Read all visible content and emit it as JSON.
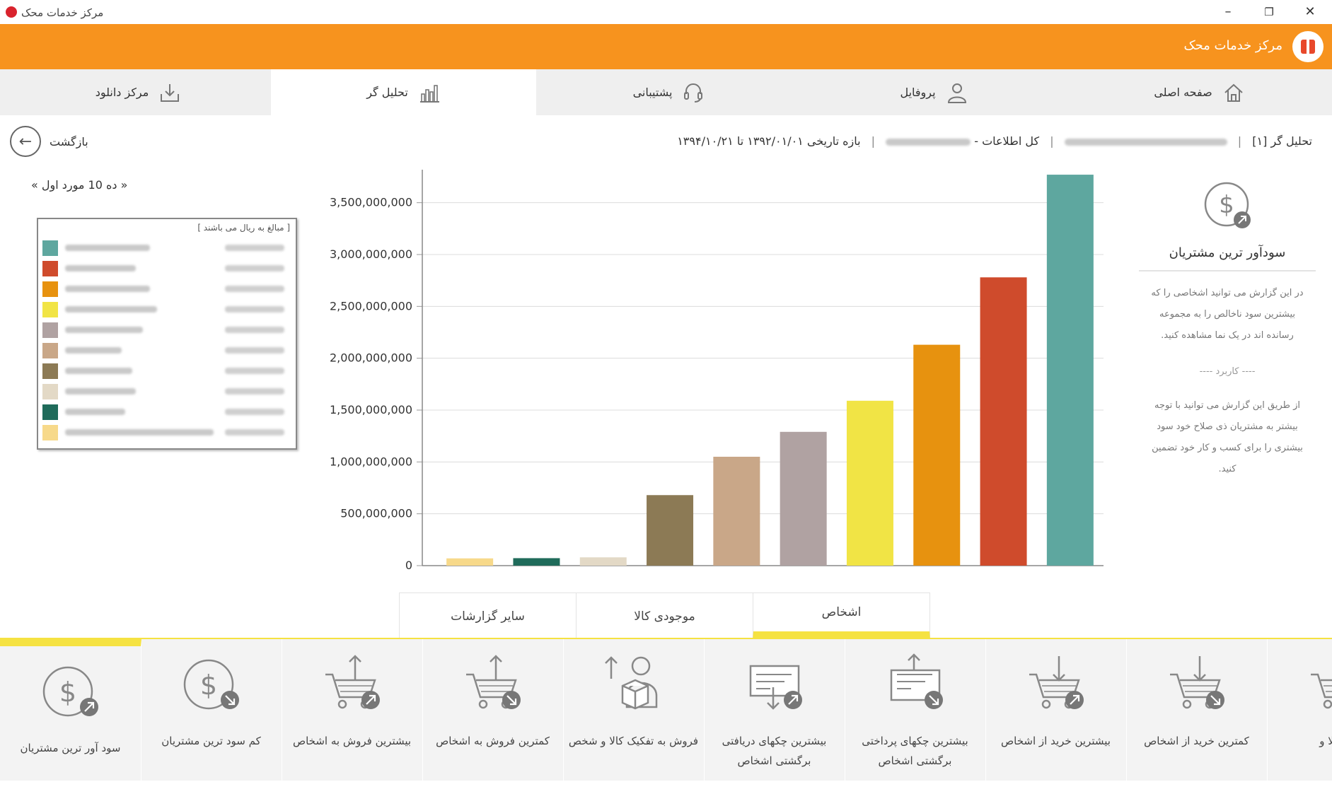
{
  "window": {
    "title": "مرکز خدمات محک",
    "minimize": "–",
    "restore": "❐",
    "close": "✕"
  },
  "header": {
    "brand": "مرکز خدمات محک"
  },
  "nav": {
    "items": [
      {
        "label": "صفحه اصلی",
        "icon": "home-icon"
      },
      {
        "label": "پروفایل",
        "icon": "user-icon"
      },
      {
        "label": "پشتیبانی",
        "icon": "headset-icon"
      },
      {
        "label": "تحلیل گر",
        "icon": "bar-chart-icon",
        "active": true
      },
      {
        "label": "مرکز دانلود",
        "icon": "download-icon"
      }
    ]
  },
  "breadcrumb": {
    "part1": "تحلیل گر [۱]",
    "part2": "کل اطلاعات - ",
    "part3": "بازه تاریخی ۱۳۹۲/۰۱/۰۱ تا ۱۳۹۴/۱۰/۲۱"
  },
  "back": {
    "label": "بازگشت",
    "icon": "arrow-left-icon"
  },
  "legend": {
    "top_label": "« ده 10 مورد اول »",
    "caption": "[ مبالغ به ریال می باشند ]"
  },
  "chart_data": {
    "type": "bar",
    "categories": [
      "",
      "",
      "",
      "",
      "",
      "",
      "",
      "",
      "",
      ""
    ],
    "values": [
      70000000,
      72000000,
      80000000,
      680000000,
      1050000000,
      1290000000,
      1590000000,
      2130000000,
      2780000000,
      3770000000
    ],
    "colors": [
      "#f7d98a",
      "#1f6b5a",
      "#e3d9c6",
      "#8c7a55",
      "#c9a788",
      "#b0a2a2",
      "#f1e445",
      "#e7920f",
      "#cf4b2c",
      "#5ea79f"
    ],
    "yticks": [
      "0",
      "500,000,000",
      "1,000,000,000",
      "1,500,000,000",
      "2,000,000,000",
      "2,500,000,000",
      "3,000,000,000",
      "3,500,000,000"
    ],
    "ylim": [
      0,
      3750000000
    ],
    "grid": true,
    "title": "",
    "xlabel": "",
    "ylabel": ""
  },
  "info": {
    "title": "سودآور ترین مشتریان",
    "description": "در این گزارش می توانید اشخاصی را که بیشترین سود ناخالص را به مجموعه رسانده اند در یک نما مشاهده کنید.",
    "user_label": "---- کاربرد ----",
    "usage": "از طریق این گزارش می توانید با توجه بیشتر به مشتریان ذی صلاح خود سود بیشتری را برای کسب و کار خود تضمین کنید."
  },
  "category_tabs": [
    {
      "label": "اشخاص",
      "active": true
    },
    {
      "label": "موجودی کالا"
    },
    {
      "label": "سایر گزارشات"
    }
  ],
  "reports": [
    {
      "label": "سود آور ترین مشتریان",
      "icon": "dollar-up-icon",
      "active": true
    },
    {
      "label": "کم سود ترین مشتریان",
      "icon": "dollar-down-icon"
    },
    {
      "label": "بیشترین فروش به اشخاص",
      "icon": "cart-up-icon"
    },
    {
      "label": "کمترین فروش به اشخاص",
      "icon": "cart-down-icon"
    },
    {
      "label": "فروش به تفکیک کالا و شخص",
      "icon": "box-person-icon"
    },
    {
      "label": "بیشترین چکهای دریافتی برگشتی اشخاص",
      "icon": "check-received-icon"
    },
    {
      "label": "بیشترین چکهای پرداختی برگشتی اشخاص",
      "icon": "check-paid-icon"
    },
    {
      "label": "بیشترین خرید از اشخاص",
      "icon": "cart-in-up-icon"
    },
    {
      "label": "کمترین خرید از اشخاص",
      "icon": "cart-in-down-icon"
    },
    {
      "label": "ک کالا و",
      "icon": "cart-partial-icon"
    }
  ]
}
